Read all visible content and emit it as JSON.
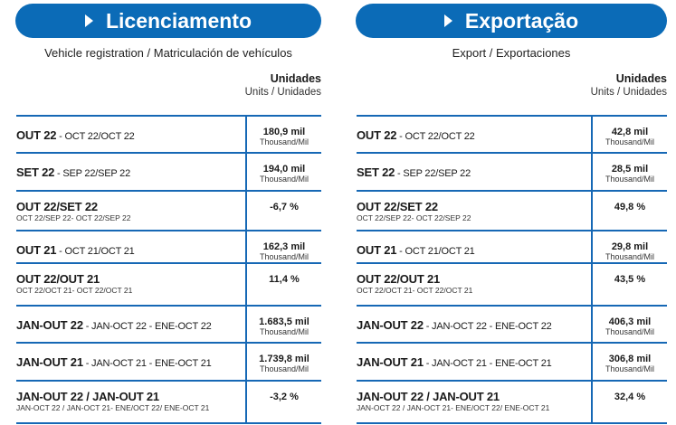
{
  "panels": [
    {
      "title": "Licenciamento",
      "subtitle": "Vehicle registration / Matriculación de vehículos",
      "units_title": "Unidades",
      "units_sub": "Units / Unidades",
      "rows": [
        {
          "main": "OUT 22",
          "trans": " - OCT 22/OCT 22",
          "small": "",
          "value": "180,9 mil",
          "unit": "Thousand/Mil"
        },
        {
          "main": "SET 22",
          "trans": " - SEP 22/SEP 22",
          "small": "",
          "value": "194,0 mil",
          "unit": "Thousand/Mil"
        },
        {
          "main": "OUT 22/SET 22",
          "trans": "",
          "small": "OCT 22/SEP 22- OCT 22/SEP 22",
          "value": "-6,7 %",
          "unit": ""
        },
        {
          "main": "OUT 21",
          "trans": " - OCT 21/OCT 21",
          "small": "",
          "value": "162,3 mil",
          "unit": "Thousand/Mil"
        },
        {
          "main": "OUT 22/OUT 21",
          "trans": "",
          "small": "OCT 22/OCT 21- OCT 22/OCT 21",
          "value": "11,4 %",
          "unit": ""
        },
        {
          "main": "JAN-OUT 22",
          "trans": " - JAN-OCT 22 - ENE-OCT 22",
          "small": "",
          "value": "1.683,5 mil",
          "unit": "Thousand/Mil"
        },
        {
          "main": "JAN-OUT 21",
          "trans": " - JAN-OCT 21 - ENE-OCT 21",
          "small": "",
          "value": "1.739,8 mil",
          "unit": "Thousand/Mil"
        },
        {
          "main": "JAN-OUT 22 / JAN-OUT 21",
          "trans": "",
          "small": "JAN-OCT 22 / JAN-OCT 21- ENE/OCT 22/ ENE-OCT 21",
          "value": "-3,2 %",
          "unit": ""
        }
      ]
    },
    {
      "title": "Exportação",
      "subtitle": "Export / Exportaciones",
      "units_title": "Unidades",
      "units_sub": "Units / Unidades",
      "rows": [
        {
          "main": "OUT 22",
          "trans": " - OCT 22/OCT 22",
          "small": "",
          "value": "42,8 mil",
          "unit": "Thousand/Mil"
        },
        {
          "main": "SET 22",
          "trans": " - SEP 22/SEP 22",
          "small": "",
          "value": "28,5 mil",
          "unit": "Thousand/Mil"
        },
        {
          "main": "OUT 22/SET 22",
          "trans": "",
          "small": "OCT 22/SEP 22- OCT 22/SEP 22",
          "value": "49,8 %",
          "unit": ""
        },
        {
          "main": "OUT 21",
          "trans": " - OCT 21/OCT 21",
          "small": "",
          "value": "29,8 mil",
          "unit": "Thousand/Mil"
        },
        {
          "main": "OUT 22/OUT 21",
          "trans": "",
          "small": "OCT 22/OCT 21- OCT 22/OCT 21",
          "value": "43,5 %",
          "unit": ""
        },
        {
          "main": "JAN-OUT 22",
          "trans": " - JAN-OCT 22 - ENE-OCT 22",
          "small": "",
          "value": "406,3 mil",
          "unit": "Thousand/Mil"
        },
        {
          "main": "JAN-OUT 21",
          "trans": " - JAN-OCT 21 - ENE-OCT 21",
          "small": "",
          "value": "306,8 mil",
          "unit": "Thousand/Mil"
        },
        {
          "main": "JAN-OUT 22 / JAN-OUT 21",
          "trans": "",
          "small": "JAN-OCT 22 / JAN-OCT 21- ENE/OCT 22/ ENE-OCT 21",
          "value": "32,4 %",
          "unit": ""
        }
      ]
    }
  ],
  "colors": {
    "accent": "#0b6bb7"
  }
}
